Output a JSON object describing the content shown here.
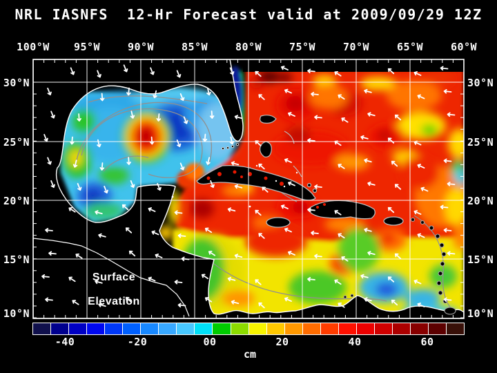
{
  "title": "NRL IASNFS  12-Hr Forecast valid at 2009/09/29 12Z",
  "axes": {
    "top": [
      "100°W",
      "95°W",
      "90°W",
      "85°W",
      "80°W",
      "75°W",
      "70°W",
      "65°W",
      "60°W"
    ],
    "left": [
      "30°N",
      "25°N",
      "20°N",
      "15°N",
      "10°N"
    ],
    "right": [
      "30°N",
      "25°N",
      "20°N",
      "15°N",
      "10°N"
    ]
  },
  "map_overlay": {
    "line1": "Surface",
    "line2": "Elevation"
  },
  "colorbar": {
    "unit": "cm",
    "tick_labels": [
      "-40",
      "-20",
      "00",
      "20",
      "40",
      "60"
    ],
    "segment_colors": [
      "#10104c",
      "#00008e",
      "#0000c4",
      "#0008f0",
      "#0038f8",
      "#0060ff",
      "#1888ff",
      "#38a8ff",
      "#48c8ff",
      "#00e0f8",
      "#00cc00",
      "#8cdc00",
      "#f8f400",
      "#ffc800",
      "#ff9800",
      "#ff6c00",
      "#ff3c00",
      "#ff1000",
      "#ec0000",
      "#d00000",
      "#ac0000",
      "#880000",
      "#5c0000",
      "#381008"
    ]
  },
  "chart_data": {
    "type": "heatmap",
    "title": "NRL IASNFS  12-Hr Forecast valid at 2009/09/29 12Z",
    "variable": "Surface Elevation",
    "unit": "cm",
    "x_axis": {
      "ticks": [
        "100°W",
        "95°W",
        "90°W",
        "85°W",
        "80°W",
        "75°W",
        "70°W",
        "65°W",
        "60°W"
      ]
    },
    "y_axis": {
      "ticks": [
        "30°N",
        "25°N",
        "20°N",
        "15°N",
        "10°N"
      ]
    },
    "colorbar_tick_values": [
      -40,
      -20,
      0,
      20,
      40,
      60
    ],
    "legend_position": "bottom"
  }
}
